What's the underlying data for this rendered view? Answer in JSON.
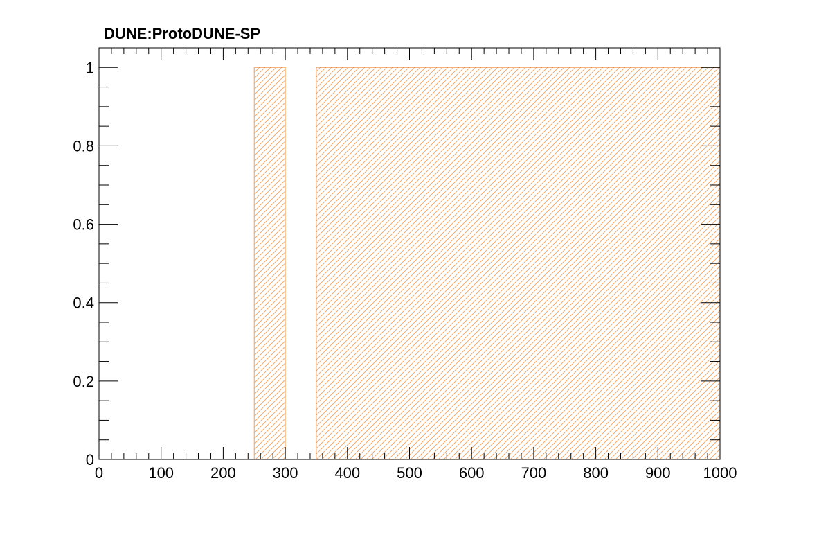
{
  "chart_data": {
    "type": "bar",
    "title": "DUNE:ProtoDUNE-SP",
    "xlabel": "",
    "ylabel": "",
    "xlim": [
      0,
      1000
    ],
    "ylim": [
      0,
      1.05
    ],
    "x_ticks": [
      0,
      100,
      200,
      300,
      400,
      500,
      600,
      700,
      800,
      900,
      1000
    ],
    "x_tick_labels": [
      "0",
      "100",
      "200",
      "300",
      "400",
      "500",
      "600",
      "700",
      "800",
      "900",
      "1000"
    ],
    "x_minor_step": 20,
    "y_ticks": [
      0,
      0.2,
      0.4,
      0.6,
      0.8,
      1
    ],
    "y_tick_labels": [
      "0",
      "0.2",
      "0.4",
      "0.6",
      "0.8",
      "1"
    ],
    "y_minor_step": 0.05,
    "grid": false,
    "fill_style": "hatched",
    "colors": {
      "bar_fill": "#f5a05a",
      "bar_edge": "#f5a05a",
      "axis": "#000000"
    },
    "bars": [
      {
        "x_start": 250,
        "x_end": 300,
        "value": 1
      },
      {
        "x_start": 350,
        "x_end": 1000,
        "value": 1
      }
    ]
  }
}
